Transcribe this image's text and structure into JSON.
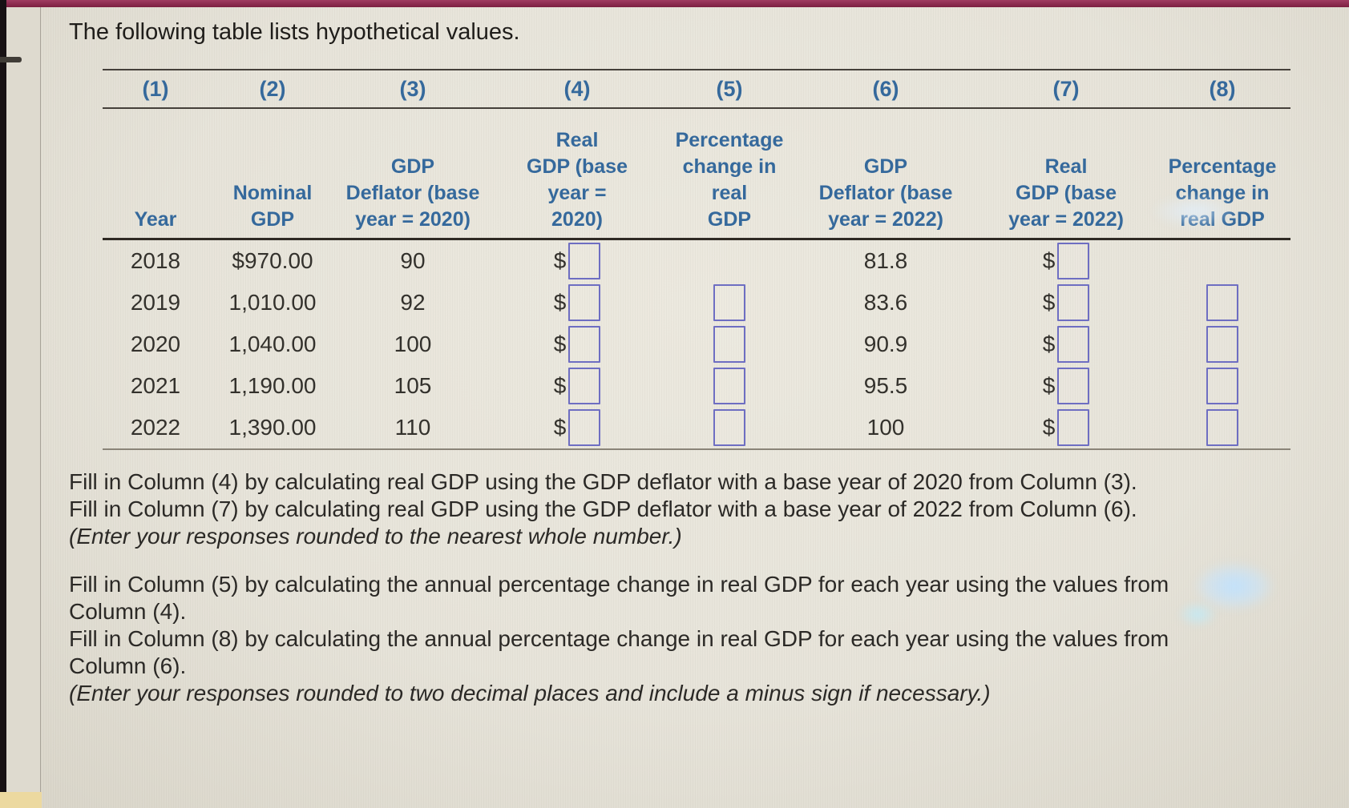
{
  "page": {
    "title": "The following table lists hypothetical values."
  },
  "colors": {
    "header_blue": "#35699c",
    "input_border_blue": "#6e6ec2",
    "top_bar_maroon": "#7c1f40",
    "background_beige": "#e7e4da",
    "sticky_note_yellow": "#ecd9a0"
  },
  "table": {
    "currency_symbol": "$",
    "column_numbers": [
      "(1)",
      "(2)",
      "(3)",
      "(4)",
      "(5)",
      "(6)",
      "(7)",
      "(8)"
    ],
    "column_headers": [
      [
        "Year"
      ],
      [
        "Nominal",
        "GDP"
      ],
      [
        "GDP",
        "Deflator (base",
        "year = 2020)"
      ],
      [
        "Real",
        "GDP (base",
        "year =",
        "2020)"
      ],
      [
        "Percentage",
        "change in real",
        "GDP"
      ],
      [
        "GDP",
        "Deflator (base",
        "year = 2022)"
      ],
      [
        "Real",
        "GDP (base",
        "year = 2022)"
      ],
      [
        "Percentage",
        "change in",
        "real GDP"
      ]
    ],
    "rows": [
      {
        "year": "2018",
        "nominal_gdp": "$970.00",
        "gdp_deflator_base_2020": "90",
        "real_gdp_base_2020_input": "",
        "pct_change_col5_input": null,
        "gdp_deflator_base_2022": "81.8",
        "real_gdp_base_2022_input": "",
        "pct_change_col8_input": null
      },
      {
        "year": "2019",
        "nominal_gdp": "1,010.00",
        "gdp_deflator_base_2020": "92",
        "real_gdp_base_2020_input": "",
        "pct_change_col5_input": "",
        "gdp_deflator_base_2022": "83.6",
        "real_gdp_base_2022_input": "",
        "pct_change_col8_input": ""
      },
      {
        "year": "2020",
        "nominal_gdp": "1,040.00",
        "gdp_deflator_base_2020": "100",
        "real_gdp_base_2020_input": "",
        "pct_change_col5_input": "",
        "gdp_deflator_base_2022": "90.9",
        "real_gdp_base_2022_input": "",
        "pct_change_col8_input": ""
      },
      {
        "year": "2021",
        "nominal_gdp": "1,190.00",
        "gdp_deflator_base_2020": "105",
        "real_gdp_base_2020_input": "",
        "pct_change_col5_input": "",
        "gdp_deflator_base_2022": "95.5",
        "real_gdp_base_2022_input": "",
        "pct_change_col8_input": ""
      },
      {
        "year": "2022",
        "nominal_gdp": "1,390.00",
        "gdp_deflator_base_2020": "110",
        "real_gdp_base_2020_input": "",
        "pct_change_col5_input": "",
        "gdp_deflator_base_2022": "100",
        "real_gdp_base_2022_input": "",
        "pct_change_col8_input": ""
      }
    ]
  },
  "instructions": {
    "para1_line1": "Fill in Column (4) by calculating real GDP using the GDP deflator with a base year of 2020 from Column (3).",
    "para1_line2": "Fill in Column (7) by calculating real GDP using the GDP deflator with a base year of 2022 from Column (6).",
    "para1_note": "(Enter your responses rounded to the nearest whole number.)",
    "para2_line1": "Fill in Column (5) by calculating the annual percentage change in real GDP for each year using the values from Column (4).",
    "para2_line2": "Fill in Column (8) by calculating the annual percentage change in real GDP for each year using the values from Column (6).",
    "para2_note": "(Enter your responses rounded to two decimal places and include a minus sign if necessary.)"
  }
}
